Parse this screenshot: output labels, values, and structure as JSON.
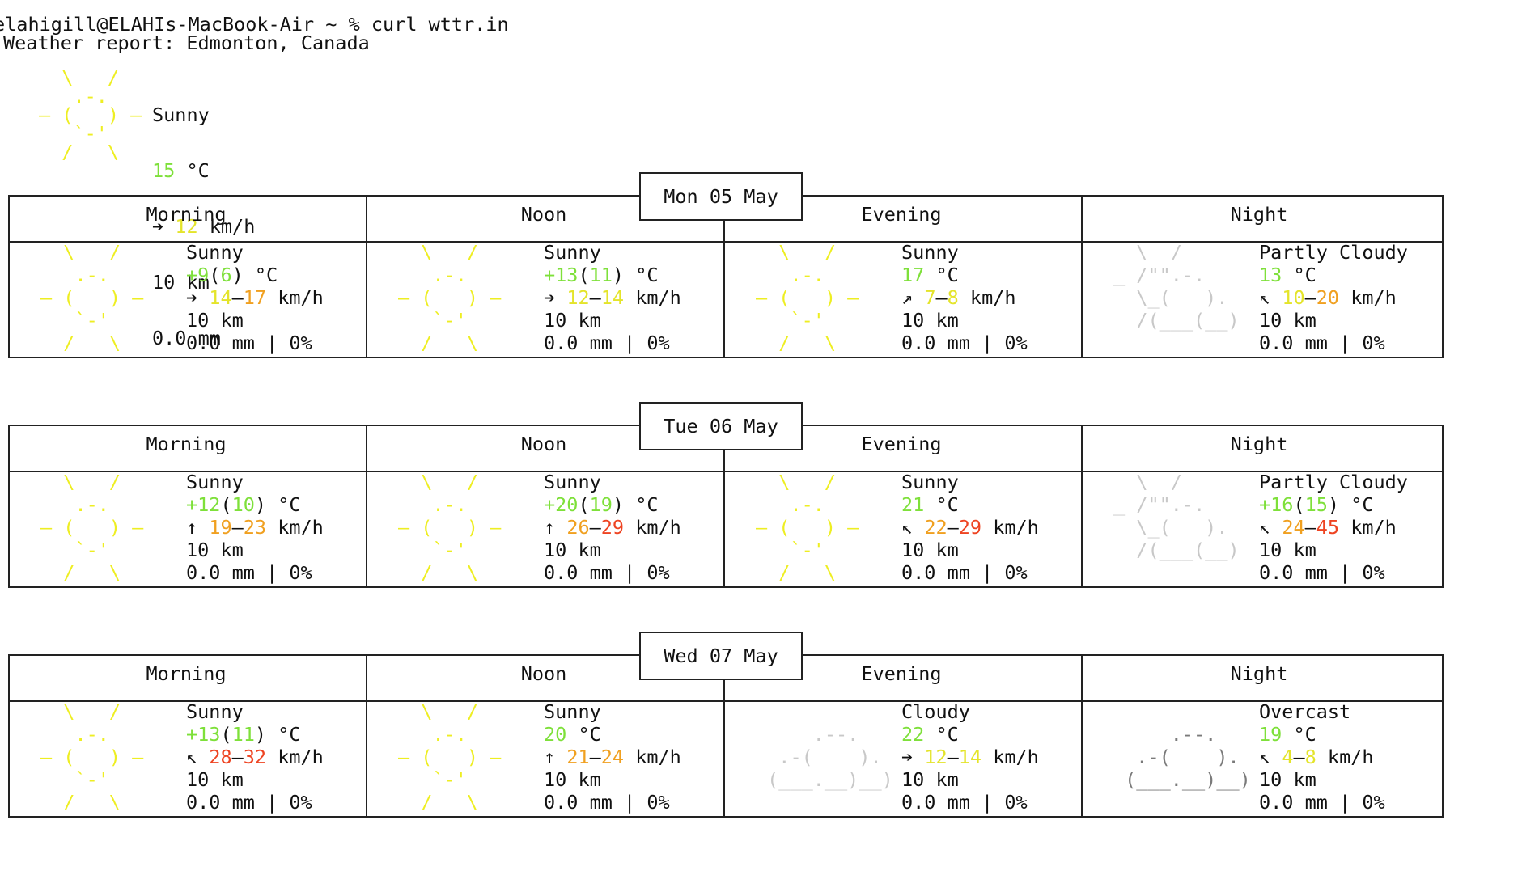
{
  "terminal": {
    "prompt": "elahigill@ELAHIs-MacBook-Air ~ % curl wttr.in",
    "report_title": "Weather report: Edmonton, Canada"
  },
  "colors": {
    "temp_green": "#7ee03a",
    "wind_yellow": "#e4e42a",
    "wind_orange": "#f0a020",
    "wind_red": "#ee4422",
    "sun_art": "#eeee22",
    "cloud_art": "#c8c8c8",
    "overcast_art": "#7a7a7a"
  },
  "current": {
    "art_lines": [
      "  \\   /  ",
      "   .-.   ",
      "― (   ) ―",
      "   `-'   ",
      "  /   \\  "
    ],
    "condition": "Sunny",
    "temp": "15",
    "temp_unit": " °C",
    "wind_arrow": "➔",
    "wind": "12",
    "wind_unit": " km/h",
    "visibility": "10 km",
    "precip": "0.0 mm"
  },
  "days": [
    {
      "date": "Mon 05 May",
      "periods": [
        {
          "name": "Morning",
          "art": "sun",
          "condition": "Sunny",
          "temp": "+9",
          "feels": "6",
          "arrow": "➔",
          "wind_min": "14",
          "wind_max": "17",
          "visibility": "10 km",
          "precip": "0.0 mm | 0%"
        },
        {
          "name": "Noon",
          "art": "sun",
          "condition": "Sunny",
          "temp": "+13",
          "feels": "11",
          "arrow": "➔",
          "wind_min": "12",
          "wind_max": "14",
          "visibility": "10 km",
          "precip": "0.0 mm | 0%"
        },
        {
          "name": "Evening",
          "art": "sun",
          "condition": "Sunny",
          "temp": "17",
          "feels": "",
          "arrow": "↗",
          "wind_min": "7",
          "wind_max": "8",
          "visibility": "10 km",
          "precip": "0.0 mm | 0%"
        },
        {
          "name": "Night",
          "art": "partly",
          "condition": "Partly Cloudy",
          "temp": "13",
          "feels": "",
          "arrow": "↖",
          "wind_min": "10",
          "wind_max": "20",
          "visibility": "10 km",
          "precip": "0.0 mm | 0%"
        }
      ]
    },
    {
      "date": "Tue 06 May",
      "periods": [
        {
          "name": "Morning",
          "art": "sun",
          "condition": "Sunny",
          "temp": "+12",
          "feels": "10",
          "arrow": "↑",
          "wind_min": "19",
          "wind_max": "23",
          "visibility": "10 km",
          "precip": "0.0 mm | 0%"
        },
        {
          "name": "Noon",
          "art": "sun",
          "condition": "Sunny",
          "temp": "+20",
          "feels": "19",
          "arrow": "↑",
          "wind_min": "26",
          "wind_max": "29",
          "visibility": "10 km",
          "precip": "0.0 mm | 0%"
        },
        {
          "name": "Evening",
          "art": "sun",
          "condition": "Sunny",
          "temp": "21",
          "feels": "",
          "arrow": "↖",
          "wind_min": "22",
          "wind_max": "29",
          "visibility": "10 km",
          "precip": "0.0 mm | 0%"
        },
        {
          "name": "Night",
          "art": "partly",
          "condition": "Partly Cloudy",
          "temp": "+16",
          "feels": "15",
          "arrow": "↖",
          "wind_min": "24",
          "wind_max": "45",
          "visibility": "10 km",
          "precip": "0.0 mm | 0%"
        }
      ]
    },
    {
      "date": "Wed 07 May",
      "periods": [
        {
          "name": "Morning",
          "art": "sun",
          "condition": "Sunny",
          "temp": "+13",
          "feels": "11",
          "arrow": "↖",
          "wind_min": "28",
          "wind_max": "32",
          "visibility": "10 km",
          "precip": "0.0 mm | 0%"
        },
        {
          "name": "Noon",
          "art": "sun",
          "condition": "Sunny",
          "temp": "20",
          "feels": "",
          "arrow": "↑",
          "wind_min": "21",
          "wind_max": "24",
          "visibility": "10 km",
          "precip": "0.0 mm | 0%"
        },
        {
          "name": "Evening",
          "art": "cloudy",
          "condition": "Cloudy",
          "temp": "22",
          "feels": "",
          "arrow": "➔",
          "wind_min": "12",
          "wind_max": "14",
          "visibility": "10 km",
          "precip": "0.0 mm | 0%"
        },
        {
          "name": "Night",
          "art": "overcast",
          "condition": "Overcast",
          "temp": "19",
          "feels": "",
          "arrow": "↖",
          "wind_min": "4",
          "wind_max": "8",
          "visibility": "10 km",
          "precip": "0.0 mm | 0%"
        }
      ]
    }
  ],
  "art_sets": {
    "sun": [
      "  \\   /  ",
      "   .-.   ",
      "― (   ) ―",
      "   `-'   ",
      "  /   \\  "
    ],
    "partly": [
      "  \\  /",
      "_ /\"\".-.",
      "  \\_(   ).",
      "  /(___(__)",
      ""
    ],
    "cloudy": [
      "",
      "     .--.",
      "  .-(    ).",
      " (___.__)__)",
      ""
    ],
    "overcast": [
      "",
      "     .--.",
      "  .-(    ).",
      " (___.__)__)",
      ""
    ]
  }
}
